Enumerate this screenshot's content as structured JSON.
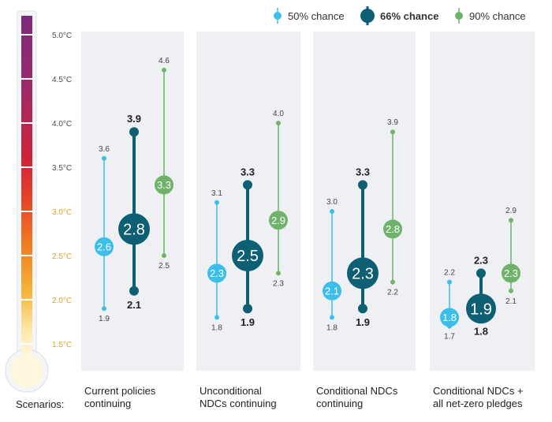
{
  "legend": {
    "items": [
      {
        "label": "50% chance",
        "color": "#3bbfea",
        "bold": false
      },
      {
        "label": "66% chance",
        "color": "#0d5f73",
        "bold": true
      },
      {
        "label": "90% chance",
        "color": "#6fb26a",
        "bold": false
      }
    ]
  },
  "scenarios_label": "Scenarios:",
  "chart_data": {
    "type": "range-dot",
    "unit": "°C",
    "y_ticks": [
      "5.0°C",
      "4.5°C",
      "4.0°C",
      "3.5°C",
      "3.0°C",
      "2.5°C",
      "2.0°C",
      "1.5°C"
    ],
    "y_tick_values": [
      5.0,
      4.5,
      4.0,
      3.5,
      3.0,
      2.5,
      2.0,
      1.5
    ],
    "ylim": [
      1.2,
      5.0
    ],
    "series_names": [
      "50% chance",
      "66% chance",
      "90% chance"
    ],
    "scenarios": [
      {
        "label_line1": "Current policies",
        "label_line2": "continuing",
        "series": [
          {
            "name": "50% chance",
            "low": 1.9,
            "mid": 2.6,
            "high": 3.6,
            "low_label": "1.9",
            "mid_label": "2.6",
            "high_label": "3.6"
          },
          {
            "name": "66% chance",
            "low": 2.1,
            "mid": 2.8,
            "high": 3.9,
            "low_label": "2.1",
            "mid_label": "2.8",
            "high_label": "3.9"
          },
          {
            "name": "90% chance",
            "low": 2.5,
            "mid": 3.3,
            "high": 4.6,
            "low_label": "2.5",
            "mid_label": "3.3",
            "high_label": "4.6"
          }
        ]
      },
      {
        "label_line1": "Unconditional",
        "label_line2": "NDCs continuing",
        "series": [
          {
            "name": "50% chance",
            "low": 1.8,
            "mid": 2.3,
            "high": 3.1,
            "low_label": "1.8",
            "mid_label": "2.3",
            "high_label": "3.1"
          },
          {
            "name": "66% chance",
            "low": 1.9,
            "mid": 2.5,
            "high": 3.3,
            "low_label": "1.9",
            "mid_label": "2.5",
            "high_label": "3.3"
          },
          {
            "name": "90% chance",
            "low": 2.3,
            "mid": 2.9,
            "high": 4.0,
            "low_label": "2.3",
            "mid_label": "2.9",
            "high_label": "4.0"
          }
        ]
      },
      {
        "label_line1": "Conditional NDCs",
        "label_line2": "continuing",
        "series": [
          {
            "name": "50% chance",
            "low": 1.8,
            "mid": 2.1,
            "high": 3.0,
            "low_label": "1.8",
            "mid_label": "2.1",
            "high_label": "3.0"
          },
          {
            "name": "66% chance",
            "low": 1.9,
            "mid": 2.3,
            "high": 3.3,
            "low_label": "1.9",
            "mid_label": "2.3",
            "high_label": "3.3"
          },
          {
            "name": "90% chance",
            "low": 2.2,
            "mid": 2.8,
            "high": 3.9,
            "low_label": "2.2",
            "mid_label": "2.8",
            "high_label": "3.9"
          }
        ]
      },
      {
        "label_line1": "Conditional NDCs +",
        "label_line2": "all net-zero pledges",
        "series": [
          {
            "name": "50% chance",
            "low": 1.7,
            "mid": 1.8,
            "high": 2.2,
            "low_label": "1.7",
            "mid_label": "1.8",
            "high_label": "2.2"
          },
          {
            "name": "66% chance",
            "low": 1.8,
            "mid": 1.9,
            "high": 2.3,
            "low_label": "1.8",
            "mid_label": "1.9",
            "high_label": "2.3"
          },
          {
            "name": "90% chance",
            "low": 2.1,
            "mid": 2.3,
            "high": 2.9,
            "low_label": "2.1",
            "mid_label": "2.3",
            "high_label": "2.9"
          }
        ]
      }
    ],
    "colors": {
      "p50": "#3bbfea",
      "p66": "#0d5f73",
      "p90": "#6fb26a",
      "panel": "#eef0f3",
      "tick_text": "#e4a21f"
    }
  }
}
